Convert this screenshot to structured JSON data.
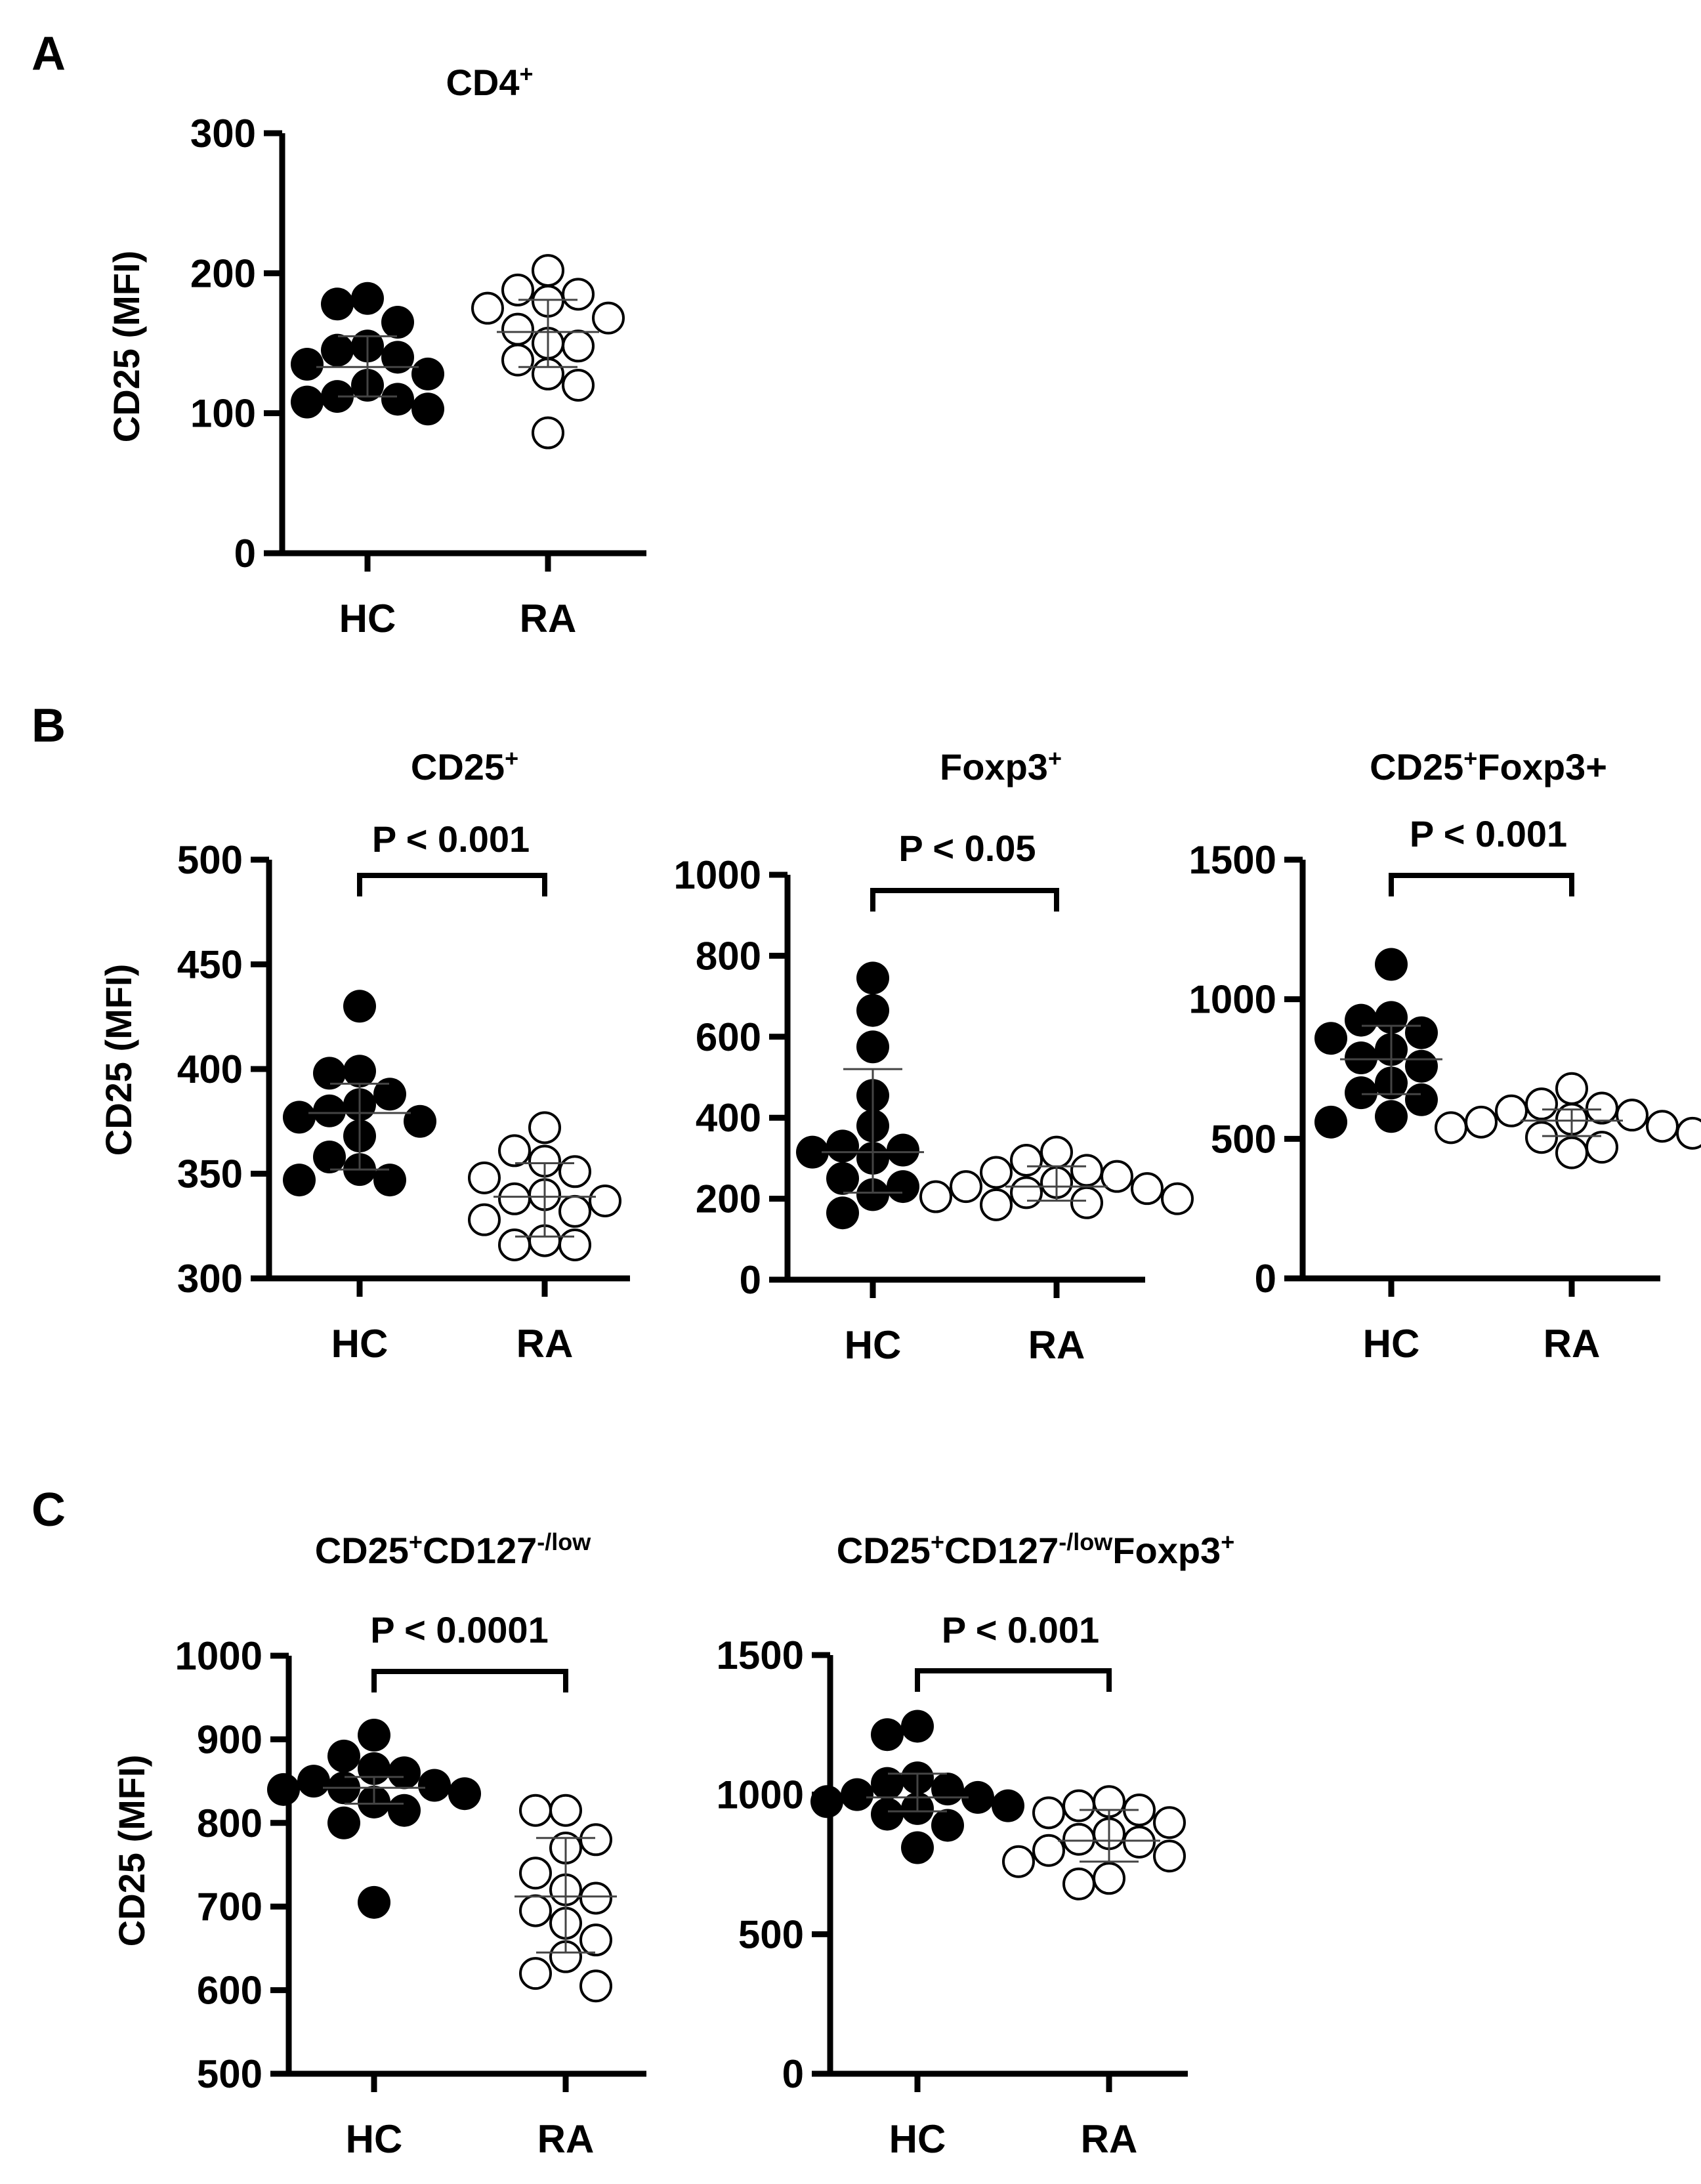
{
  "figure": {
    "panel_labels": [
      "A",
      "B",
      "C"
    ]
  },
  "chart_data": [
    {
      "id": "A",
      "type": "scatter",
      "panel": "A",
      "title": "CD4",
      "title_sup": "+",
      "title_rest": "",
      "ylabel": "CD25 (MFI)",
      "ylim": [
        0,
        300
      ],
      "yticks": [
        0,
        100,
        200,
        300
      ],
      "categories": [
        "HC",
        "RA"
      ],
      "pvalue": null,
      "groups": [
        {
          "name": "HC",
          "fill": "filled",
          "mean": 133,
          "sd": [
            112,
            155
          ],
          "values": [
            182,
            178,
            165,
            148,
            140,
            145,
            135,
            128,
            120,
            110,
            108,
            112,
            103
          ]
        },
        {
          "name": "RA",
          "fill": "open",
          "mean": 158,
          "sd": [
            133,
            181
          ],
          "values": [
            202,
            188,
            185,
            180,
            175,
            168,
            160,
            150,
            148,
            138,
            128,
            120,
            86
          ]
        }
      ]
    },
    {
      "id": "B1",
      "type": "scatter",
      "panel": "B",
      "title": "CD25",
      "title_sup": "+",
      "title_rest": "",
      "ylabel": "CD25 (MFI)",
      "ylim": [
        300,
        500
      ],
      "yticks": [
        300,
        350,
        400,
        450,
        500
      ],
      "categories": [
        "HC",
        "RA"
      ],
      "pvalue": "P < 0.001",
      "groups": [
        {
          "name": "HC",
          "fill": "filled",
          "mean": 379,
          "sd": [
            352,
            393
          ],
          "values": [
            430,
            399,
            398,
            388,
            383,
            380,
            377,
            375,
            368,
            358,
            352,
            347,
            347
          ]
        },
        {
          "name": "RA",
          "fill": "open",
          "mean": 339,
          "sd": [
            320,
            355
          ],
          "values": [
            372,
            361,
            356,
            351,
            348,
            340,
            338,
            337,
            332,
            328,
            318,
            316,
            316
          ]
        }
      ]
    },
    {
      "id": "B2",
      "type": "scatter",
      "panel": "B",
      "title": "Foxp3",
      "title_sup": "+",
      "title_rest": "",
      "ylabel": "",
      "ylim": [
        0,
        1000
      ],
      "yticks": [
        0,
        200,
        400,
        600,
        800,
        1000
      ],
      "categories": [
        "HC",
        "RA"
      ],
      "pvalue": "P < 0.05",
      "groups": [
        {
          "name": "HC",
          "fill": "filled",
          "mean": 315,
          "sd": [
            215,
            520
          ],
          "values": [
            745,
            665,
            575,
            455,
            380,
            330,
            320,
            315,
            300,
            250,
            230,
            210,
            165
          ]
        },
        {
          "name": "RA",
          "fill": "open",
          "mean": 230,
          "sd": [
            195,
            280
          ],
          "values": [
            315,
            295,
            270,
            265,
            255,
            240,
            230,
            225,
            215,
            205,
            200,
            190,
            185
          ]
        }
      ]
    },
    {
      "id": "B3",
      "type": "scatter",
      "panel": "B",
      "title": "CD25",
      "title_sup": "+",
      "title_rest": "Foxp3+",
      "ylabel": "",
      "ylim": [
        0,
        1500
      ],
      "yticks": [
        0,
        500,
        1000,
        1500
      ],
      "categories": [
        "HC",
        "RA"
      ],
      "pvalue": "P < 0.001",
      "groups": [
        {
          "name": "HC",
          "fill": "filled",
          "mean": 785,
          "sd": [
            660,
            905
          ],
          "values": [
            1125,
            935,
            925,
            880,
            860,
            820,
            790,
            760,
            700,
            665,
            640,
            580,
            560
          ]
        },
        {
          "name": "RA",
          "fill": "open",
          "mean": 565,
          "sd": [
            510,
            605
          ],
          "values": [
            680,
            625,
            610,
            600,
            585,
            570,
            560,
            545,
            540,
            520,
            505,
            470,
            450
          ]
        }
      ]
    },
    {
      "id": "C1",
      "type": "scatter",
      "panel": "C",
      "title": "CD25",
      "title_sup": "+",
      "title_rest": "CD127",
      "title_sup2": "-/low",
      "ylabel": "CD25 (MFI)",
      "ylim": [
        500,
        1000
      ],
      "yticks": [
        500,
        600,
        700,
        800,
        900,
        1000
      ],
      "categories": [
        "HC",
        "RA"
      ],
      "pvalue": "P < 0.0001",
      "groups": [
        {
          "name": "HC",
          "fill": "filled",
          "mean": 842,
          "sd": [
            823,
            855
          ],
          "values": [
            905,
            880,
            865,
            860,
            850,
            845,
            842,
            840,
            835,
            825,
            815,
            800,
            705
          ]
        },
        {
          "name": "RA",
          "fill": "open",
          "mean": 712,
          "sd": [
            645,
            782
          ],
          "values": [
            815,
            815,
            780,
            770,
            740,
            720,
            710,
            695,
            680,
            660,
            640,
            620,
            605
          ]
        }
      ]
    },
    {
      "id": "C2",
      "type": "scatter",
      "panel": "C",
      "title": "CD25",
      "title_sup": "+",
      "title_rest": "CD127",
      "title_sup2": "-/low",
      "title_rest2": "Foxp3",
      "title_sup3": "+",
      "ylabel": "",
      "ylim": [
        0,
        1500
      ],
      "yticks": [
        0,
        500,
        1000,
        1500
      ],
      "categories": [
        "HC",
        "RA"
      ],
      "pvalue": "P < 0.001",
      "groups": [
        {
          "name": "HC",
          "fill": "filled",
          "mean": 990,
          "sd": [
            940,
            1075
          ],
          "values": [
            1245,
            1215,
            1060,
            1040,
            1020,
            1000,
            990,
            975,
            960,
            950,
            930,
            890,
            810
          ]
        },
        {
          "name": "RA",
          "fill": "open",
          "mean": 835,
          "sd": [
            760,
            945
          ],
          "values": [
            975,
            960,
            945,
            935,
            900,
            860,
            840,
            830,
            800,
            780,
            760,
            700,
            680
          ]
        }
      ]
    }
  ]
}
